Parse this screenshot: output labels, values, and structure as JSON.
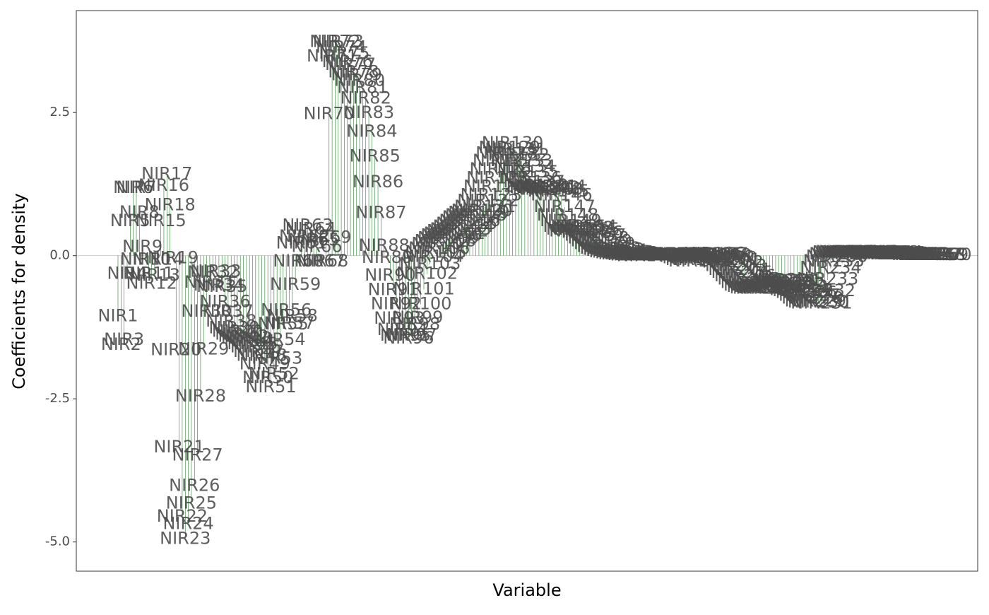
{
  "chart_data": {
    "type": "lollipop-labels",
    "x_label": "Variable",
    "y_label": "Coefficients for density",
    "color": "#2e7d32",
    "label_color": "#4d4d4d",
    "ylim": [
      -5.51,
      4.28
    ],
    "yticks": [
      {
        "value": -5,
        "label": "-5.0"
      },
      -2.5,
      {
        "value": 0,
        "label": "0.0"
      },
      2.5
    ],
    "categories": [
      "NIR1",
      "NIR2",
      "NIR3",
      "NIR4",
      "NIR5",
      "NIR6",
      "NIR7",
      "NIR8",
      "NIR9",
      "NIR10",
      "NIR11",
      "NIR12",
      "NIR13",
      "NIR14",
      "NIR15",
      "NIR16",
      "NIR17",
      "NIR18",
      "NIR19",
      "NIR20",
      "NIR21",
      "NIR22",
      "NIR23",
      "NIR24",
      "NIR25",
      "NIR26",
      "NIR27",
      "NIR28",
      "NIR29",
      "NIR30",
      "NIR31",
      "NIR32",
      "NIR33",
      "NIR34",
      "NIR35",
      "NIR36",
      "NIR37",
      "NIR38",
      "NIR39",
      "NIR40",
      "NIR41",
      "NIR42",
      "NIR43",
      "NIR44",
      "NIR45",
      "NIR46",
      "NIR47",
      "NIR48",
      "NIR49",
      "NIR50",
      "NIR51",
      "NIR52",
      "NIR53",
      "NIR54",
      "NIR55",
      "NIR56",
      "NIR57",
      "NIR58",
      "NIR59",
      "NIR60",
      "NIR61",
      "NIR62",
      "NIR63",
      "NIR64",
      "NIR65",
      "NIR66",
      "NIR67",
      "NIR68",
      "NIR69",
      "NIR70",
      "NIR71",
      "NIR72",
      "NIR73",
      "NIR74",
      "NIR75",
      "NIR76",
      "NIR77",
      "NIR78",
      "NIR79",
      "NIR80",
      "NIR81",
      "NIR82",
      "NIR83",
      "NIR84",
      "NIR85",
      "NIR86",
      "NIR87",
      "NIR88",
      "NIR89",
      "NIR90",
      "NIR91",
      "NIR92",
      "NIR93",
      "NIR94",
      "NIR95",
      "NIR96",
      "NIR97",
      "NIR98",
      "NIR99",
      "NIR100",
      "NIR101",
      "NIR102",
      "NIR103",
      "NIR104",
      "NIR105",
      "NIR106",
      "NIR107",
      "NIR108",
      "NIR109",
      "NIR110",
      "NIR111",
      "NIR112",
      "NIR113",
      "NIR114",
      "NIR115",
      "NIR116",
      "NIR117",
      "NIR118",
      "NIR119",
      "NIR120",
      "NIR121",
      "NIR122",
      "NIR123",
      "NIR124",
      "NIR125",
      "NIR126",
      "NIR127",
      "NIR128",
      "NIR129",
      "NIR130",
      "NIR131",
      "NIR132",
      "NIR133",
      "NIR134",
      "NIR135",
      "NIR136",
      "NIR137",
      "NIR138",
      "NIR139",
      "NIR140",
      "NIR141",
      "NIR142",
      "NIR143",
      "NIR144",
      "NIR145",
      "NIR146",
      "NIR147",
      "NIR148",
      "NIR149",
      "NIR150",
      "NIR151",
      "NIR152",
      "NIR153",
      "NIR154",
      "NIR155",
      "NIR156",
      "NIR157",
      "NIR158",
      "NIR159",
      "NIR160",
      "NIR161",
      "NIR162",
      "NIR163",
      "NIR164",
      "NIR165",
      "NIR166",
      "NIR167",
      "NIR168",
      "NIR169",
      "NIR170",
      "NIR171",
      "NIR172",
      "NIR173",
      "NIR174",
      "NIR175",
      "NIR176",
      "NIR177",
      "NIR178",
      "NIR179",
      "NIR180",
      "NIR181",
      "NIR182",
      "NIR183",
      "NIR184",
      "NIR185",
      "NIR186",
      "NIR187",
      "NIR188",
      "NIR189",
      "NIR190",
      "NIR191",
      "NIR192",
      "NIR193",
      "NIR194",
      "NIR195",
      "NIR196",
      "NIR197",
      "NIR198",
      "NIR199",
      "NIR200",
      "NIR201",
      "NIR202",
      "NIR203",
      "NIR204",
      "NIR205",
      "NIR206",
      "NIR207",
      "NIR208",
      "NIR209",
      "NIR210",
      "NIR211",
      "NIR212",
      "NIR213",
      "NIR214",
      "NIR215",
      "NIR216",
      "NIR217",
      "NIR218",
      "NIR219",
      "NIR220",
      "NIR221",
      "NIR222",
      "NIR223",
      "NIR224",
      "NIR225",
      "NIR226",
      "NIR227",
      "NIR228",
      "NIR229",
      "NIR230",
      "NIR231",
      "NIR232",
      "NIR233",
      "NIR234",
      "NIR235",
      "NIR236",
      "NIR237",
      "NIR238",
      "NIR239",
      "NIR240",
      "NIR241",
      "NIR242",
      "NIR243",
      "NIR244",
      "NIR245",
      "NIR246",
      "NIR247",
      "NIR248",
      "NIR249",
      "NIR250",
      "NIR251",
      "NIR252",
      "NIR253",
      "NIR254",
      "NIR255",
      "NIR256",
      "NIR257",
      "NIR258",
      "NIR259",
      "NIR260",
      "NIR261",
      "NIR262",
      "NIR263",
      "NIR264",
      "NIR265",
      "NIR266",
      "NIR267",
      "NIR268",
      "NIR269",
      "NIR270"
    ],
    "values": [
      -1.06,
      -1.56,
      -1.47,
      -0.32,
      0.6,
      1.18,
      1.18,
      0.75,
      0.15,
      -0.07,
      -0.32,
      -0.49,
      -0.35,
      -0.07,
      0.6,
      1.22,
      1.42,
      0.88,
      -0.05,
      -1.65,
      -3.35,
      -4.56,
      -4.95,
      -4.69,
      -4.33,
      -4.02,
      -3.49,
      -2.46,
      -1.64,
      -0.98,
      -0.47,
      -0.3,
      -0.28,
      -0.52,
      -0.55,
      -0.81,
      -0.98,
      -1.15,
      -1.27,
      -1.33,
      -1.38,
      -1.42,
      -1.45,
      -1.5,
      -1.55,
      -1.6,
      -1.68,
      -1.75,
      -1.9,
      -2.14,
      -2.3,
      -2.07,
      -1.8,
      -1.47,
      -1.2,
      -0.96,
      -1.19,
      -1.06,
      -0.51,
      -0.1,
      0.21,
      0.33,
      0.52,
      0.46,
      0.27,
      0.15,
      -0.1,
      -0.1,
      0.31,
      2.47,
      3.48,
      3.73,
      3.73,
      3.63,
      3.53,
      3.38,
      3.33,
      3.2,
      3.15,
      3.05,
      2.93,
      2.74,
      2.49,
      2.16,
      1.73,
      1.28,
      0.74,
      0.17,
      -0.04,
      -0.35,
      -0.6,
      -0.85,
      -1.1,
      -1.3,
      -1.4,
      -1.45,
      -1.39,
      -1.21,
      -1.09,
      -0.85,
      -0.59,
      -0.32,
      -0.15,
      -0.02,
      0.05,
      0.12,
      0.2,
      0.25,
      0.3,
      0.35,
      0.38,
      0.42,
      0.45,
      0.5,
      0.55,
      0.6,
      0.66,
      0.7,
      0.74,
      0.78,
      0.85,
      0.95,
      1.05,
      1.2,
      1.35,
      1.5,
      1.65,
      1.78,
      1.88,
      1.96,
      1.85,
      1.75,
      1.65,
      1.55,
      1.45,
      1.35,
      1.28,
      1.22,
      1.18,
      1.15,
      1.2,
      1.18,
      1.15,
      1.2,
      1.12,
      1.05,
      0.85,
      0.7,
      0.6,
      0.5,
      0.45,
      0.42,
      0.48,
      0.5,
      0.45,
      0.4,
      0.35,
      0.3,
      0.25,
      0.2,
      0.15,
      0.12,
      0.1,
      0.08,
      0.06,
      0.05,
      0.04,
      0.03,
      0.02,
      0.02,
      0.01,
      0,
      0,
      -0.01,
      0,
      0.01,
      0.02,
      0.01,
      0,
      0,
      0,
      0,
      0.01,
      0.02,
      0.02,
      0.01,
      0,
      -0.02,
      -0.05,
      -0.08,
      -0.1,
      -0.05,
      -0.02,
      0,
      0.02,
      0.03,
      0.02,
      0,
      -0.03,
      -0.05,
      -0.08,
      -0.12,
      -0.18,
      -0.25,
      -0.3,
      -0.36,
      -0.42,
      -0.48,
      -0.52,
      -0.55,
      -0.57,
      -0.58,
      -0.58,
      -0.57,
      -0.55,
      -0.53,
      -0.5,
      -0.48,
      -0.45,
      -0.43,
      -0.45,
      -0.5,
      -0.55,
      -0.6,
      -0.62,
      -0.65,
      -0.7,
      -0.75,
      -0.8,
      -0.82,
      -0.84,
      -0.62,
      -0.42,
      -0.22,
      -0.1,
      -0.02,
      0.02,
      0.05,
      0.06,
      0.06,
      0.05,
      0.04,
      0.04,
      0.05,
      0.06,
      0.06,
      0.05,
      0.04,
      0.03,
      0.03,
      0.03,
      0.04,
      0.05,
      0.05,
      0.04,
      0.03,
      0.02,
      0.02,
      0.02,
      0.02,
      0.02,
      0.02,
      0.02,
      0.01,
      0.01,
      0.01,
      0.01,
      0.01,
      0.01,
      0.01
    ]
  }
}
